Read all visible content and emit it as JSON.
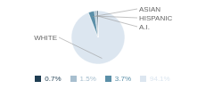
{
  "chart_data": {
    "type": "pie",
    "categories": [
      "WHITE",
      "ASIAN",
      "HISPANIC",
      "A.I."
    ],
    "values": [
      94.1,
      3.7,
      1.5,
      0.7
    ],
    "value_labels": [
      "94.1%",
      "3.7%",
      "1.5%",
      "0.7%"
    ],
    "colors": [
      "#dce6f0",
      "#5b8fa8",
      "#a8bfcf",
      "#1f3d52"
    ],
    "legend": "bottom"
  }
}
